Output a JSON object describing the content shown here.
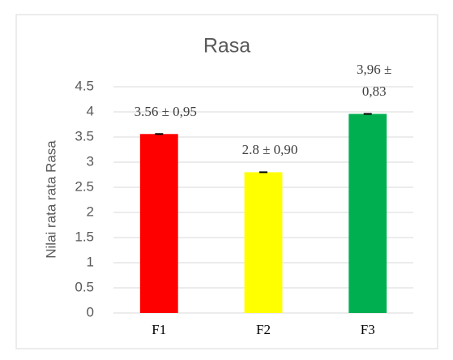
{
  "chart_data": {
    "type": "bar",
    "title": "Rasa",
    "ylabel": "Nilai rata rata Rasa",
    "categories": [
      "F1",
      "F2",
      "F3"
    ],
    "values": [
      3.56,
      2.8,
      3.96
    ],
    "value_labels": [
      "3.56 ± 0,95",
      "2.8 ± 0,90",
      "3,96 ± 0,83"
    ],
    "colors": [
      "#ff0000",
      "#ffff00",
      "#00b050"
    ],
    "ylim": [
      0,
      4.5
    ],
    "yticks": [
      0,
      0.5,
      1,
      1.5,
      2,
      2.5,
      3,
      3.5,
      4,
      4.5
    ],
    "grid": true
  }
}
